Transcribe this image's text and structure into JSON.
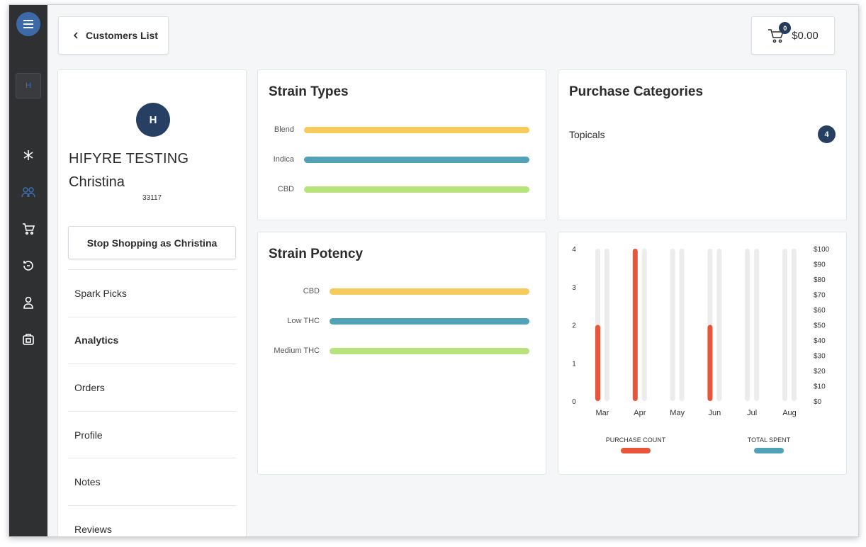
{
  "topbar": {
    "back_label": "Customers List",
    "cart_count": "0",
    "cart_total": "$0.00"
  },
  "rail": {
    "avatar_initial": "H",
    "icons": [
      "menu-icon",
      "sparkle-icon",
      "customers-icon",
      "cart-icon",
      "refresh-icon",
      "user-icon",
      "bag-icon"
    ]
  },
  "customer": {
    "initial": "H",
    "name_line1": "HIFYRE TESTING",
    "name_line2": "Christina",
    "id": "33117",
    "stop_label": "Stop Shopping as Christina",
    "nav": [
      {
        "label": "Spark Picks",
        "active": false
      },
      {
        "label": "Analytics",
        "active": true
      },
      {
        "label": "Orders",
        "active": false
      },
      {
        "label": "Profile",
        "active": false
      },
      {
        "label": "Notes",
        "active": false
      },
      {
        "label": "Reviews",
        "active": false
      }
    ]
  },
  "strain_types": {
    "title": "Strain Types",
    "items": [
      {
        "label": "Blend",
        "color": "#f5cb5c",
        "value": 1
      },
      {
        "label": "Indica",
        "color": "#52a2b7",
        "value": 1
      },
      {
        "label": "CBD",
        "color": "#b8e27c",
        "value": 1
      }
    ]
  },
  "strain_potency": {
    "title": "Strain Potency",
    "items": [
      {
        "label": "CBD",
        "color": "#f5cb5c",
        "value": 1
      },
      {
        "label": "Low THC",
        "color": "#52a2b7",
        "value": 1
      },
      {
        "label": "Medium THC",
        "color": "#b8e27c",
        "value": 1
      }
    ]
  },
  "purchase_categories": {
    "title": "Purchase Categories",
    "items": [
      {
        "label": "Topicals",
        "count": "4"
      }
    ]
  },
  "chart_data": {
    "type": "bar",
    "categories": [
      "Mar",
      "Apr",
      "May",
      "Jun",
      "Jul",
      "Aug"
    ],
    "series": [
      {
        "name": "PURCHASE COUNT",
        "color": "#e8553a",
        "axis": "left",
        "values": [
          2,
          4,
          0,
          2,
          0,
          0
        ]
      },
      {
        "name": "TOTAL SPENT",
        "color": "#52a2b7",
        "axis": "right",
        "values": [
          0,
          0,
          0,
          0,
          0,
          0
        ]
      }
    ],
    "ylim_left": [
      0,
      4
    ],
    "yticks_left": [
      "0",
      "1",
      "2",
      "3",
      "4"
    ],
    "ylim_right": [
      0,
      100
    ],
    "yticks_right": [
      "$0",
      "$10",
      "$20",
      "$30",
      "$40",
      "$50",
      "$60",
      "$70",
      "$80",
      "$90",
      "$100"
    ],
    "track_color": "#ececec",
    "legend_position": "bottom",
    "grid": false
  }
}
